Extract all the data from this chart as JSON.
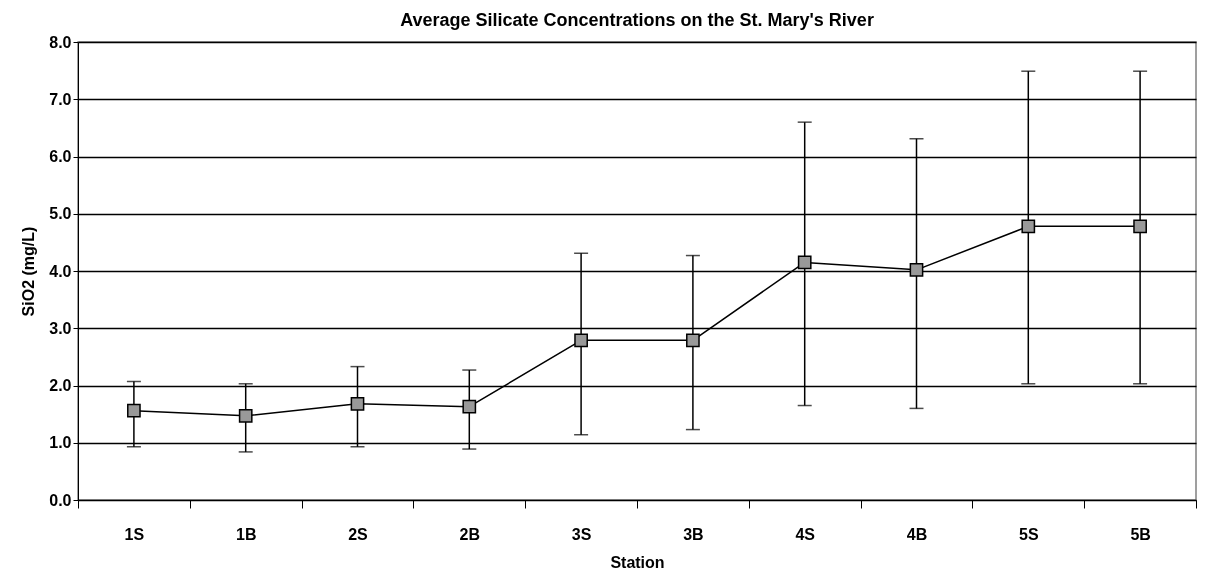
{
  "chart_data": {
    "type": "line",
    "title": "Average Silicate Concentrations on the St. Mary's River",
    "xlabel": "Station",
    "ylabel": "SiO2 (mg/L)",
    "categories": [
      "1S",
      "1B",
      "2S",
      "2B",
      "3S",
      "3B",
      "4S",
      "4B",
      "5S",
      "5B"
    ],
    "series": [
      {
        "color": "#999999",
        "values": [
          1.56,
          1.47,
          1.68,
          1.63,
          2.79,
          2.79,
          4.15,
          4.02,
          4.78,
          4.78
        ],
        "errors": [
          [
            0.93,
            2.07
          ],
          [
            0.84,
            2.03
          ],
          [
            0.93,
            2.33
          ],
          [
            0.89,
            2.27
          ],
          [
            1.14,
            4.31
          ],
          [
            1.23,
            4.27
          ],
          [
            1.65,
            6.6
          ],
          [
            1.6,
            6.31
          ],
          [
            2.03,
            7.49
          ],
          [
            2.03,
            7.49
          ]
        ]
      }
    ],
    "ylim": [
      0,
      8
    ],
    "yticks": [
      {
        "value": 0,
        "label": "0.0"
      },
      {
        "value": 1,
        "label": "1.0"
      },
      {
        "value": 2,
        "label": "2.0"
      },
      {
        "value": 3,
        "label": "3.0"
      },
      {
        "value": 4,
        "label": "4.0"
      },
      {
        "value": 5,
        "label": "5.0"
      },
      {
        "value": 6,
        "label": "6.0"
      },
      {
        "value": 7,
        "label": "7.0"
      },
      {
        "value": 8,
        "label": "8.0"
      }
    ],
    "grid": "y",
    "marker": "square",
    "line_style": "solid"
  }
}
